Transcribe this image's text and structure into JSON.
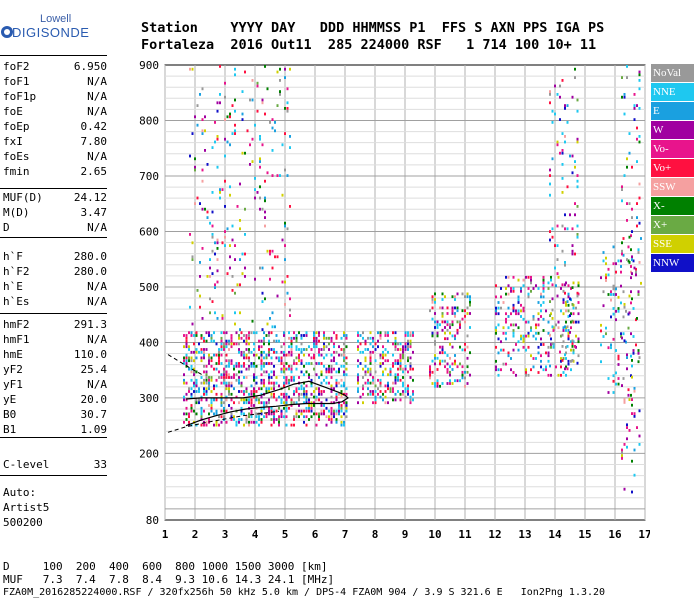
{
  "logo": {
    "top_text": "Lowell",
    "main_text": "DIGISONDE"
  },
  "header": {
    "labels": "Station    YYYY DAY   DDD HHMMSS P1  FFS S AXN PPS IGA PS",
    "values": "Fortaleza  2016 Out11  285 224000 RSF   1 714 100 10+ 11"
  },
  "params": {
    "group1": [
      {
        "name": "foF2",
        "value": "6.950"
      },
      {
        "name": "foF1",
        "value": "N/A"
      },
      {
        "name": "foF1p",
        "value": "N/A"
      },
      {
        "name": "foE",
        "value": "N/A"
      },
      {
        "name": "foEp",
        "value": "0.42"
      },
      {
        "name": "fxI",
        "value": "7.80"
      },
      {
        "name": "foEs",
        "value": "N/A"
      },
      {
        "name": "fmin",
        "value": "2.65"
      }
    ],
    "group2": [
      {
        "name": "MUF(D)",
        "value": "24.12"
      },
      {
        "name": "M(D)",
        "value": "3.47"
      },
      {
        "name": "D",
        "value": "N/A"
      }
    ],
    "group3": [
      {
        "name": "h`F",
        "value": "280.0"
      },
      {
        "name": "h`F2",
        "value": "280.0"
      },
      {
        "name": "h`E",
        "value": "N/A"
      },
      {
        "name": "h`Es",
        "value": "N/A"
      }
    ],
    "group4": [
      {
        "name": "hmF2",
        "value": "291.3"
      },
      {
        "name": "hmF1",
        "value": "N/A"
      },
      {
        "name": "hmE",
        "value": "110.0"
      },
      {
        "name": "yF2",
        "value": "25.4"
      },
      {
        "name": "yF1",
        "value": "N/A"
      },
      {
        "name": "yE",
        "value": "20.0"
      },
      {
        "name": "B0",
        "value": "30.7"
      },
      {
        "name": "B1",
        "value": "1.09"
      }
    ],
    "group5": [
      {
        "name": "C-level",
        "value": "33"
      }
    ],
    "auto": [
      "Auto:",
      "Artist5",
      "500200"
    ]
  },
  "legend": [
    {
      "label": "NoVal",
      "color": "#999999"
    },
    {
      "label": "NNE",
      "color": "#1ec8f0"
    },
    {
      "label": "E",
      "color": "#1aa0e0"
    },
    {
      "label": "W",
      "color": "#a000a0"
    },
    {
      "label": "Vo-",
      "color": "#e8148c"
    },
    {
      "label": "Vo+",
      "color": "#ff1040"
    },
    {
      "label": "SSW",
      "color": "#f5a0a0"
    },
    {
      "label": "X-",
      "color": "#008000"
    },
    {
      "label": "X+",
      "color": "#6aaa44"
    },
    {
      "label": "SSE",
      "color": "#d0d000"
    },
    {
      "label": "NNW",
      "color": "#1010c8"
    }
  ],
  "footer": {
    "d_row": "D     100  200  400  600  800 1000 1500 3000 [km]",
    "muf_row": "MUF   7.3  7.4  7.8  8.4  9.3 10.6 14.3 24.1 [MHz]",
    "info_row": "FZA0M_2016285224000.RSF / 320fx256h 50 kHz 5.0 km / DPS-4 FZA0M 904 / 3.9 S 321.6 E   Ion2Png 1.3.20"
  },
  "chart_data": {
    "type": "scatter",
    "title": "",
    "xlabel": "",
    "ylabel": "",
    "xlim": [
      1,
      17
    ],
    "ylim": [
      80,
      900
    ],
    "x_ticks": [
      "1",
      "2",
      "3",
      "4",
      "5",
      "6",
      "7",
      "8",
      "9",
      "10",
      "11",
      "12",
      "13",
      "14",
      "15",
      "16",
      "17"
    ],
    "y_ticks": [
      "80",
      "200",
      "300",
      "400",
      "500",
      "600",
      "700",
      "800",
      "900"
    ],
    "profile_curve": {
      "x": [
        1.7,
        2.2,
        3.0,
        3.6,
        4.2,
        4.8,
        5.3,
        5.8,
        6.3,
        6.8,
        7.0,
        7.1,
        6.9,
        6.6,
        6.2,
        5.7,
        5.2,
        4.7,
        4.2,
        3.7,
        3.2,
        2.7,
        2.2,
        1.7
      ],
      "y": [
        298,
        300,
        300,
        300,
        305,
        315,
        325,
        330,
        320,
        310,
        305,
        300,
        293,
        290,
        290,
        290,
        288,
        285,
        283,
        280,
        275,
        268,
        260,
        250
      ]
    },
    "lower_dashed": {
      "x": [
        1.1,
        1.7,
        2.3,
        3.0,
        3.6,
        4.2,
        4.8
      ],
      "y": [
        238,
        248,
        255,
        262,
        268,
        272,
        276
      ]
    },
    "upper_dashed": {
      "x": [
        1.1,
        1.5,
        1.9,
        2.3
      ],
      "y": [
        378,
        365,
        352,
        340
      ]
    },
    "echo_regions": [
      {
        "x": [
          1.6,
          7.1
        ],
        "y": [
          250,
          420
        ],
        "density": 0.9
      },
      {
        "x": [
          7.4,
          9.3
        ],
        "y": [
          290,
          420
        ],
        "density": 0.8
      },
      {
        "x": [
          9.8,
          11.2
        ],
        "y": [
          320,
          490
        ],
        "density": 0.55
      },
      {
        "x": [
          12.0,
          14.8
        ],
        "y": [
          340,
          520
        ],
        "density": 0.45
      },
      {
        "x": [
          15.5,
          16.9
        ],
        "y": [
          300,
          600
        ],
        "density": 0.25
      },
      {
        "x": [
          1.8,
          5.2
        ],
        "y": [
          420,
          900
        ],
        "density": 0.12
      },
      {
        "x": [
          13.8,
          14.8
        ],
        "y": [
          350,
          900
        ],
        "density": 0.18
      },
      {
        "x": [
          16.2,
          16.9
        ],
        "y": [
          80,
          900
        ],
        "density": 0.15
      }
    ]
  }
}
